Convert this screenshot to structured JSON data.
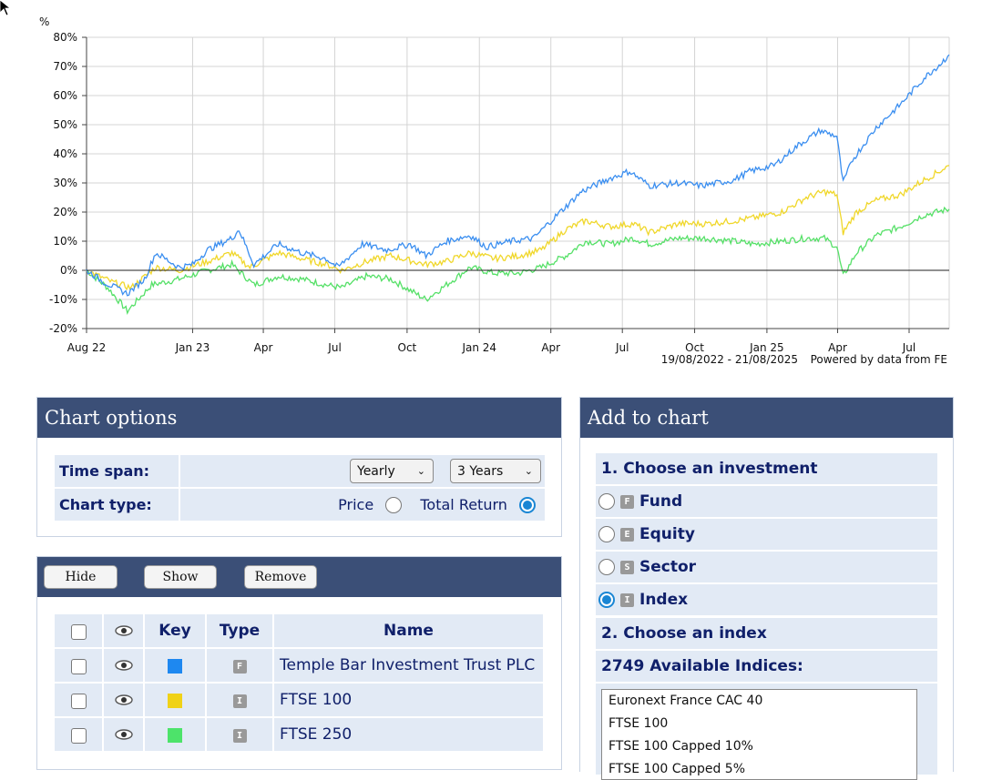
{
  "chart_data": {
    "type": "line",
    "ylabel": "%",
    "ylim": [
      -20,
      80
    ],
    "y_ticks": [
      "80%",
      "70%",
      "60%",
      "50%",
      "40%",
      "30%",
      "20%",
      "10%",
      "0%",
      "-10%",
      "-20%"
    ],
    "x_ticks": [
      "Aug 22",
      "Jan 23",
      "Apr",
      "Jul",
      "Oct",
      "Jan 24",
      "Apr",
      "Jul",
      "Oct",
      "Jan 25",
      "Apr",
      "Jul"
    ],
    "x_tick_dates": [
      "2022-08-19",
      "2023-01-01",
      "2023-04-01",
      "2023-07-01",
      "2023-10-01",
      "2024-01-01",
      "2024-04-01",
      "2024-07-01",
      "2024-10-01",
      "2025-01-01",
      "2025-04-01",
      "2025-07-01"
    ],
    "date_range_label": "19/08/2022 - 21/08/2025",
    "source_label": "Powered by data from FE",
    "grid": true,
    "series": [
      {
        "name": "Temple Bar Investment Trust PLC",
        "color": "#3a8ef0",
        "points": [
          [
            "2022-08-19",
            0
          ],
          [
            "2022-09-10",
            -4
          ],
          [
            "2022-10-10",
            -8
          ],
          [
            "2022-11-01",
            -3
          ],
          [
            "2022-11-15",
            6
          ],
          [
            "2022-12-15",
            1
          ],
          [
            "2023-01-01",
            2
          ],
          [
            "2023-01-20",
            7
          ],
          [
            "2023-02-20",
            11
          ],
          [
            "2023-03-01",
            14
          ],
          [
            "2023-03-20",
            2
          ],
          [
            "2023-04-20",
            9
          ],
          [
            "2023-05-20",
            6
          ],
          [
            "2023-06-20",
            4
          ],
          [
            "2023-07-05",
            1
          ],
          [
            "2023-08-05",
            9
          ],
          [
            "2023-09-05",
            7
          ],
          [
            "2023-10-05",
            9
          ],
          [
            "2023-10-25",
            5
          ],
          [
            "2023-11-20",
            10
          ],
          [
            "2023-12-20",
            12
          ],
          [
            "2024-01-10",
            8
          ],
          [
            "2024-02-10",
            10
          ],
          [
            "2024-03-10",
            11
          ],
          [
            "2024-04-05",
            18
          ],
          [
            "2024-05-10",
            27
          ],
          [
            "2024-06-10",
            31
          ],
          [
            "2024-07-10",
            34
          ],
          [
            "2024-08-05",
            29
          ],
          [
            "2024-09-10",
            30
          ],
          [
            "2024-10-10",
            29
          ],
          [
            "2024-11-20",
            31
          ],
          [
            "2024-12-10",
            34
          ],
          [
            "2025-01-10",
            36
          ],
          [
            "2025-02-10",
            43
          ],
          [
            "2025-03-10",
            48
          ],
          [
            "2025-03-31",
            46
          ],
          [
            "2025-04-08",
            30
          ],
          [
            "2025-04-20",
            38
          ],
          [
            "2025-05-20",
            49
          ],
          [
            "2025-06-20",
            57
          ],
          [
            "2025-07-20",
            66
          ],
          [
            "2025-08-10",
            71
          ],
          [
            "2025-08-21",
            74
          ]
        ]
      },
      {
        "name": "FTSE 100",
        "color": "#f0d72a",
        "points": [
          [
            "2022-08-19",
            0
          ],
          [
            "2022-09-20",
            -4
          ],
          [
            "2022-10-15",
            -6
          ],
          [
            "2022-11-15",
            1
          ],
          [
            "2022-12-15",
            0
          ],
          [
            "2023-01-20",
            3
          ],
          [
            "2023-02-20",
            6
          ],
          [
            "2023-03-15",
            1
          ],
          [
            "2023-04-20",
            6
          ],
          [
            "2023-05-20",
            4
          ],
          [
            "2023-06-20",
            2
          ],
          [
            "2023-07-10",
            0
          ],
          [
            "2023-08-10",
            3
          ],
          [
            "2023-09-10",
            5
          ],
          [
            "2023-10-25",
            2
          ],
          [
            "2023-11-20",
            3
          ],
          [
            "2023-12-20",
            6
          ],
          [
            "2024-01-20",
            4
          ],
          [
            "2024-02-20",
            5
          ],
          [
            "2024-03-20",
            7
          ],
          [
            "2024-04-20",
            14
          ],
          [
            "2024-05-15",
            17
          ],
          [
            "2024-06-15",
            15
          ],
          [
            "2024-07-15",
            16
          ],
          [
            "2024-08-05",
            13
          ],
          [
            "2024-09-10",
            16
          ],
          [
            "2024-10-15",
            16
          ],
          [
            "2024-11-20",
            17
          ],
          [
            "2024-12-15",
            18
          ],
          [
            "2025-01-20",
            20
          ],
          [
            "2025-02-20",
            25
          ],
          [
            "2025-03-15",
            27
          ],
          [
            "2025-03-31",
            26
          ],
          [
            "2025-04-08",
            13
          ],
          [
            "2025-04-25",
            20
          ],
          [
            "2025-05-20",
            24
          ],
          [
            "2025-06-20",
            26
          ],
          [
            "2025-07-20",
            31
          ],
          [
            "2025-08-21",
            36
          ]
        ]
      },
      {
        "name": "FTSE 250",
        "color": "#55e067",
        "points": [
          [
            "2022-08-19",
            0
          ],
          [
            "2022-09-15",
            -6
          ],
          [
            "2022-10-10",
            -14
          ],
          [
            "2022-11-10",
            -5
          ],
          [
            "2022-12-15",
            -3
          ],
          [
            "2023-01-20",
            0
          ],
          [
            "2023-02-20",
            2
          ],
          [
            "2023-03-20",
            -5
          ],
          [
            "2023-04-20",
            -2
          ],
          [
            "2023-05-20",
            -3
          ],
          [
            "2023-06-20",
            -5
          ],
          [
            "2023-07-10",
            -6
          ],
          [
            "2023-08-10",
            -2
          ],
          [
            "2023-09-10",
            -3
          ],
          [
            "2023-10-25",
            -10
          ],
          [
            "2023-11-20",
            -5
          ],
          [
            "2023-12-20",
            1
          ],
          [
            "2024-01-20",
            -1
          ],
          [
            "2024-02-20",
            -1
          ],
          [
            "2024-03-20",
            1
          ],
          [
            "2024-04-20",
            5
          ],
          [
            "2024-05-15",
            10
          ],
          [
            "2024-06-15",
            9
          ],
          [
            "2024-07-15",
            11
          ],
          [
            "2024-08-05",
            9
          ],
          [
            "2024-09-10",
            11
          ],
          [
            "2024-10-15",
            11
          ],
          [
            "2024-11-20",
            10
          ],
          [
            "2024-12-15",
            9
          ],
          [
            "2025-01-20",
            10
          ],
          [
            "2025-02-20",
            11
          ],
          [
            "2025-03-15",
            11
          ],
          [
            "2025-03-31",
            8
          ],
          [
            "2025-04-08",
            -2
          ],
          [
            "2025-04-25",
            6
          ],
          [
            "2025-05-20",
            12
          ],
          [
            "2025-06-20",
            15
          ],
          [
            "2025-07-20",
            19
          ],
          [
            "2025-08-21",
            21
          ]
        ]
      }
    ]
  },
  "chart_options": {
    "title": "Chart options",
    "time_span_label": "Time span:",
    "time_span_period": "Yearly",
    "time_span_length": "3 Years",
    "chart_type_label": "Chart type:",
    "price_label": "Price",
    "total_return_label": "Total Return",
    "selected_chart_type": "Total Return"
  },
  "list_panel": {
    "hide_label": "Hide",
    "show_label": "Show",
    "remove_label": "Remove",
    "headers": {
      "key": "Key",
      "type": "Type",
      "name": "Name"
    },
    "rows": [
      {
        "name": "Temple Bar Investment Trust PLC",
        "type_badge": "F",
        "color": "#1e88f0"
      },
      {
        "name": "FTSE 100",
        "type_badge": "I",
        "color": "#f0d217"
      },
      {
        "name": "FTSE 250",
        "type_badge": "I",
        "color": "#4de36a"
      }
    ]
  },
  "add_to_chart": {
    "title": "Add to chart",
    "step1_label": "1. Choose an investment",
    "options": [
      {
        "badge": "F",
        "label": "Fund",
        "selected": false
      },
      {
        "badge": "E",
        "label": "Equity",
        "selected": false
      },
      {
        "badge": "S",
        "label": "Sector",
        "selected": false
      },
      {
        "badge": "I",
        "label": "Index",
        "selected": true
      }
    ],
    "step2_label": "2. Choose an index",
    "available_label": "2749 Available Indices:",
    "indices": [
      "Euronext France CAC 40",
      "FTSE 100",
      "FTSE 100 Capped 10%",
      "FTSE 100 Capped 5%"
    ]
  }
}
